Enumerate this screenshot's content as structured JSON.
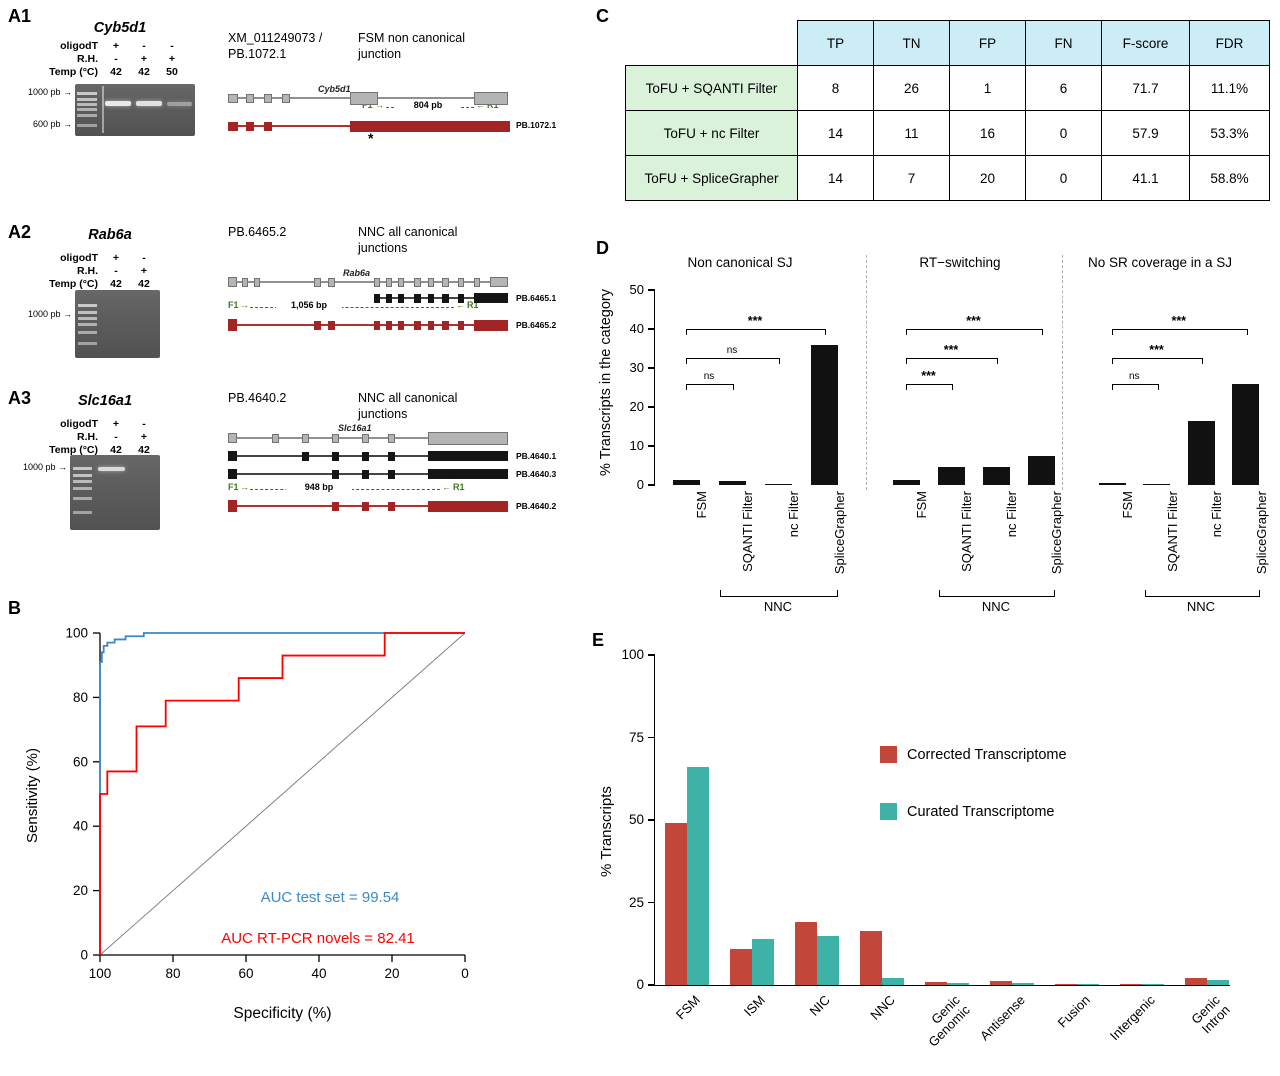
{
  "panels": {
    "A1": "A1",
    "A2": "A2",
    "A3": "A3",
    "B": "B",
    "C": "C",
    "D": "D",
    "E": "E"
  },
  "icons": {
    "arrow_right": "→",
    "arrow_left": "←"
  },
  "panelA1": {
    "gene_title": "Cyb5d1",
    "gel": {
      "rows": [
        {
          "label": "oligodT",
          "values": [
            "+",
            "-",
            "-"
          ]
        },
        {
          "label": "R.H.",
          "values": [
            "-",
            "+",
            "+"
          ]
        },
        {
          "label": "Temp (°C)",
          "values": [
            "42",
            "42",
            "50"
          ]
        }
      ],
      "markers": [
        {
          "text": "1000 pb"
        },
        {
          "text": "600 pb"
        }
      ]
    },
    "transcript_ref": "XM_011249073 / PB.1072.1",
    "junction_type": "FSM non canonical junction",
    "diagram": {
      "gene_label": "Cyb5d1",
      "forward_primer": "F1",
      "reverse_primer": "R1",
      "amplicon_size": "804 pb",
      "isoform_label": "PB.1072.1",
      "novel_junction_mark": "*"
    }
  },
  "panelA2": {
    "gene_title": "Rab6a",
    "gel": {
      "rows": [
        {
          "label": "oligodT",
          "values": [
            "+",
            "-"
          ]
        },
        {
          "label": "R.H.",
          "values": [
            "-",
            "+"
          ]
        },
        {
          "label": "Temp (°C)",
          "values": [
            "42",
            "42"
          ]
        }
      ],
      "markers": [
        {
          "text": "1000 pb"
        }
      ]
    },
    "transcript_ref": "PB.6465.2",
    "junction_type": "NNC all canonical junctions",
    "diagram": {
      "gene_label": "Rab6a",
      "isoform_top_label": "PB.6465.1",
      "forward_primer": "F1",
      "reverse_primer": "R1",
      "amplicon_size": "1,056 bp",
      "isoform_red_label": "PB.6465.2"
    }
  },
  "panelA3": {
    "gene_title": "Slc16a1",
    "gel": {
      "rows": [
        {
          "label": "oligodT",
          "values": [
            "+",
            "-"
          ]
        },
        {
          "label": "R.H.",
          "values": [
            "-",
            "+"
          ]
        },
        {
          "label": "Temp (°C)",
          "values": [
            "42",
            "42"
          ]
        }
      ],
      "markers": [
        {
          "text": "1000 pb"
        }
      ]
    },
    "transcript_ref": "PB.4640.2",
    "junction_type": "NNC all canonical junctions",
    "diagram": {
      "gene_label": "Slc16a1",
      "isoform1_label": "PB.4640.1",
      "isoform2_label": "PB.4640.3",
      "forward_primer": "F1",
      "reverse_primer": "R1",
      "amplicon_size": "948 bp",
      "isoform_red_label": "PB.4640.2"
    }
  },
  "panelC": {
    "columns": [
      "TP",
      "TN",
      "FP",
      "FN",
      "F-score",
      "FDR"
    ],
    "rows": [
      {
        "label": "ToFU + SQANTI Filter",
        "values": [
          "8",
          "26",
          "1",
          "6",
          "71.7",
          "11.1%"
        ]
      },
      {
        "label": "ToFU + nc Filter",
        "values": [
          "14",
          "11",
          "16",
          "0",
          "57.9",
          "53.3%"
        ]
      },
      {
        "label": "ToFU + SpliceGrapher",
        "values": [
          "14",
          "7",
          "20",
          "0",
          "41.1",
          "58.8%"
        ]
      }
    ],
    "header_bg": "#cdedf6",
    "rowlabel_bg": "#d9f2d9"
  },
  "chart_data": [
    {
      "id": "roc",
      "type": "line",
      "xlabel": "Specificity (%)",
      "ylabel": "Sensitivity (%)",
      "xticks": [
        100,
        80,
        60,
        40,
        20,
        0
      ],
      "yticks": [
        0,
        20,
        40,
        60,
        80,
        100
      ],
      "x_reversed": true,
      "diagonal": true,
      "series": [
        {
          "name": "AUC test set = 99.54",
          "color": "#3a8ac8",
          "points": [
            [
              100,
              0
            ],
            [
              100,
              91
            ],
            [
              99.5,
              91
            ],
            [
              99.5,
              94
            ],
            [
              99,
              94
            ],
            [
              99,
              96
            ],
            [
              98,
              96
            ],
            [
              98,
              97
            ],
            [
              96,
              97
            ],
            [
              96,
              98
            ],
            [
              93,
              98
            ],
            [
              93,
              99
            ],
            [
              88,
              99
            ],
            [
              88,
              100
            ],
            [
              0,
              100
            ]
          ]
        },
        {
          "name": "AUC RT-PCR novels = 82.41",
          "color": "#ff0000",
          "points": [
            [
              100,
              0
            ],
            [
              100,
              50
            ],
            [
              98,
              50
            ],
            [
              98,
              57
            ],
            [
              90,
              57
            ],
            [
              90,
              71
            ],
            [
              82,
              71
            ],
            [
              82,
              79
            ],
            [
              62,
              79
            ],
            [
              62,
              86
            ],
            [
              50,
              86
            ],
            [
              50,
              93
            ],
            [
              22,
              93
            ],
            [
              22,
              100
            ],
            [
              0,
              100
            ]
          ]
        }
      ]
    },
    {
      "id": "filters",
      "type": "bar",
      "ylabel": "% Transcripts in the category",
      "ylim": [
        0,
        50
      ],
      "yticks": [
        0,
        10,
        20,
        30,
        40,
        50
      ],
      "bar_color": "#111111",
      "categories": [
        "FSM",
        "SQANTI Filter",
        "nc Filter",
        "SpliceGrapher"
      ],
      "group_label": "NNC",
      "subplots": [
        {
          "title": "Non canonical SJ",
          "values": [
            1.2,
            1.0,
            0.3,
            36
          ],
          "brackets": [
            {
              "from": 0,
              "to": 1,
              "label": "ns",
              "y": 26
            },
            {
              "from": 0,
              "to": 2,
              "label": "ns",
              "y": 32.5
            },
            {
              "from": 0,
              "to": 3,
              "label": "***",
              "y": 40
            }
          ]
        },
        {
          "title": "RT−switching",
          "values": [
            1.2,
            4.6,
            4.6,
            7.4
          ],
          "brackets": [
            {
              "from": 0,
              "to": 1,
              "label": "***",
              "y": 26
            },
            {
              "from": 0,
              "to": 2,
              "label": "***",
              "y": 32.5
            },
            {
              "from": 0,
              "to": 3,
              "label": "***",
              "y": 40
            }
          ]
        },
        {
          "title": "No SR coverage in a SJ",
          "values": [
            0.6,
            0.3,
            16.5,
            26
          ],
          "brackets": [
            {
              "from": 0,
              "to": 1,
              "label": "ns",
              "y": 26
            },
            {
              "from": 0,
              "to": 2,
              "label": "***",
              "y": 32.5
            },
            {
              "from": 0,
              "to": 3,
              "label": "***",
              "y": 40
            }
          ]
        }
      ]
    },
    {
      "id": "categories",
      "type": "bar",
      "ylabel": "% Transcripts",
      "ylim": [
        0,
        100
      ],
      "yticks": [
        0,
        25,
        50,
        75,
        100
      ],
      "categories": [
        "FSM",
        "ISM",
        "NIC",
        "NNC",
        "Genic\nGenomic",
        "Antisense",
        "Fusion",
        "Intergenic",
        "Genic\nIntron"
      ],
      "series": [
        {
          "name": "Corrected Transcriptome",
          "color": "#c3463a",
          "values": [
            49,
            11,
            19,
            16.5,
            0.8,
            1.2,
            0.4,
            0.3,
            2
          ]
        },
        {
          "name": "Curated Transcriptome",
          "color": "#3fb2a8",
          "values": [
            66,
            14,
            15,
            2,
            0.7,
            0.6,
            0.2,
            0.3,
            1.5
          ]
        }
      ]
    }
  ]
}
